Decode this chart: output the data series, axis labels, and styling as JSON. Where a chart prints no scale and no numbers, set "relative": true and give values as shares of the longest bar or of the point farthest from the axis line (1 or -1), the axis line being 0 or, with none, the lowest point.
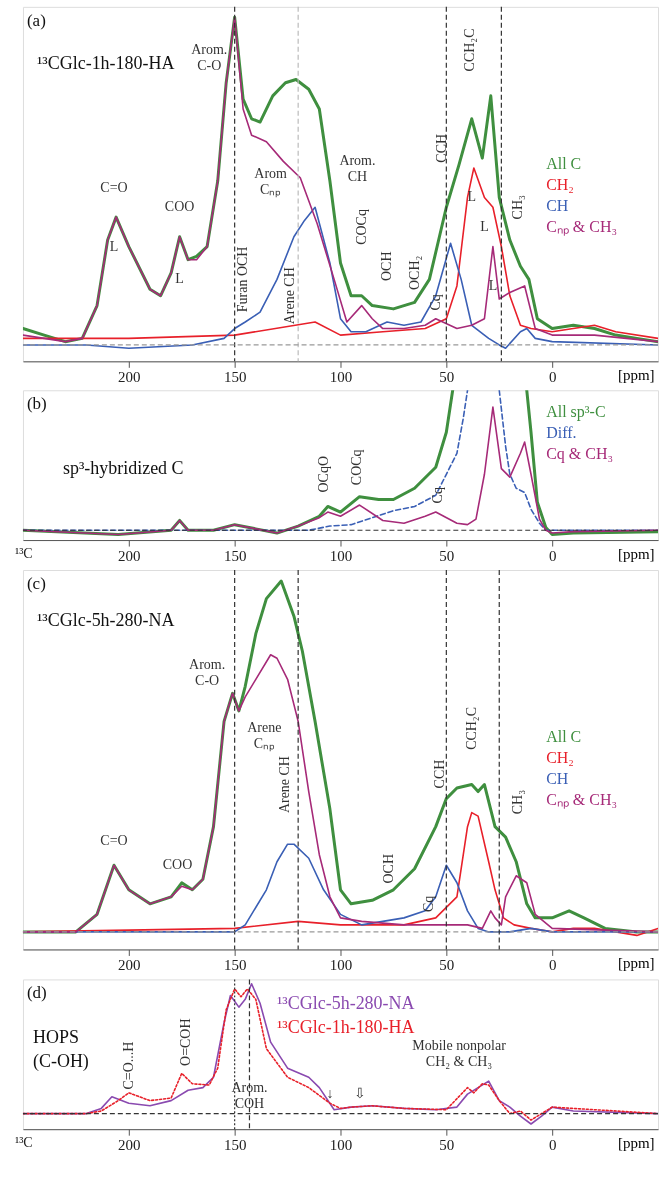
{
  "chart_data": [
    {
      "type": "line",
      "relative": true,
      "title": "(a)",
      "subtitle": "¹³CGlc-1h-180-HA",
      "xlabel": "[ppm]",
      "legend": "right",
      "grid": false,
      "xlim": [
        250,
        -50
      ],
      "xticks": [
        200,
        150,
        100,
        50,
        0
      ],
      "series": [
        {
          "name": "All C",
          "color": "#3f8f3f",
          "line_style": "solid",
          "x": [
            250,
            240,
            230,
            222,
            215,
            210,
            206,
            200,
            190,
            185,
            180,
            176,
            172,
            168,
            163,
            158,
            154,
            150,
            146,
            142,
            138,
            132,
            126,
            121,
            115,
            110,
            105,
            100,
            95,
            90,
            85,
            75,
            65,
            58,
            50,
            44,
            38,
            33,
            29,
            25,
            20,
            15,
            11,
            7,
            0,
            -10,
            -20,
            -30,
            -40,
            -50
          ],
          "values": [
            0.05,
            0.03,
            0.01,
            0.02,
            0.12,
            0.32,
            0.39,
            0.3,
            0.17,
            0.15,
            0.22,
            0.33,
            0.26,
            0.27,
            0.3,
            0.5,
            0.8,
            1.0,
            0.75,
            0.69,
            0.68,
            0.76,
            0.8,
            0.81,
            0.78,
            0.72,
            0.5,
            0.25,
            0.15,
            0.15,
            0.12,
            0.11,
            0.13,
            0.2,
            0.42,
            0.55,
            0.69,
            0.57,
            0.76,
            0.45,
            0.32,
            0.24,
            0.2,
            0.08,
            0.05,
            0.06,
            0.05,
            0.03,
            0.02,
            0.01
          ]
        },
        {
          "name": "CH₂",
          "color": "#e8202a",
          "line_style": "solid",
          "x": [
            250,
            200,
            150,
            112,
            100,
            80,
            60,
            50,
            45,
            40,
            37,
            32,
            28,
            24,
            20,
            15,
            10,
            0,
            -10,
            -20,
            -30,
            -50
          ],
          "values": [
            0.02,
            0.02,
            0.03,
            0.07,
            0.03,
            0.04,
            0.05,
            0.08,
            0.18,
            0.45,
            0.54,
            0.45,
            0.42,
            0.3,
            0.15,
            0.06,
            0.05,
            0.04,
            0.05,
            0.06,
            0.04,
            0.02
          ]
        },
        {
          "name": "CH",
          "color": "#3a5fb5",
          "line_style": "solid",
          "x": [
            250,
            220,
            200,
            170,
            155,
            150,
            145,
            138,
            130,
            122,
            117,
            112,
            105,
            100,
            95,
            88,
            78,
            70,
            62,
            55,
            48,
            43,
            38,
            30,
            25,
            22,
            15,
            12,
            8,
            0,
            -50
          ],
          "values": [
            0,
            0,
            -0.01,
            0,
            0.02,
            0.05,
            0.07,
            0.1,
            0.2,
            0.33,
            0.38,
            0.42,
            0.25,
            0.08,
            0.04,
            0.04,
            0.07,
            0.06,
            0.07,
            0.15,
            0.31,
            0.2,
            0.06,
            0.02,
            0,
            -0.01,
            0.04,
            0.05,
            0.02,
            0.01,
            0
          ]
        },
        {
          "name": "Cₙₚ & CH₃",
          "color": "#a62a78",
          "line_style": "solid",
          "x": [
            250,
            240,
            230,
            222,
            215,
            210,
            206,
            200,
            190,
            185,
            180,
            176,
            172,
            168,
            163,
            158,
            154,
            150,
            146,
            142,
            135,
            127,
            119,
            111,
            103,
            97,
            90,
            85,
            80,
            70,
            60,
            55,
            45,
            38,
            32,
            28,
            25,
            20,
            13,
            8,
            0,
            -20,
            -50
          ],
          "values": [
            0.03,
            0.02,
            0.01,
            0.02,
            0.12,
            0.32,
            0.39,
            0.3,
            0.17,
            0.15,
            0.22,
            0.33,
            0.26,
            0.26,
            0.3,
            0.5,
            0.8,
            1.0,
            0.72,
            0.64,
            0.62,
            0.56,
            0.51,
            0.37,
            0.2,
            0.07,
            0.12,
            0.08,
            0.05,
            0.05,
            0.06,
            0.08,
            0.05,
            0.06,
            0.08,
            0.3,
            0.14,
            0.16,
            0.18,
            0.05,
            0.03,
            0.03,
            0.01
          ]
        }
      ],
      "ref_lines": [
        {
          "axis": "x",
          "value": 150,
          "color": "#333333",
          "line_style": "dashed"
        },
        {
          "axis": "x",
          "value": 120,
          "color": "#bbbbbb",
          "line_style": "dashed"
        },
        {
          "axis": "x",
          "value": 50,
          "color": "#333333",
          "line_style": "dashed"
        },
        {
          "axis": "x",
          "value": 24,
          "color": "#333333",
          "line_style": "dashed"
        },
        {
          "axis": "y",
          "value": 0,
          "color": "#999999",
          "line_style": "dashed"
        }
      ],
      "annotations": [
        "Arom.\nC-O",
        "C=O",
        "L",
        "COO",
        "L",
        "Arom\nCₙₚ",
        "Arom.\nCH",
        "Furan OCH",
        "Arene CH",
        "COCq",
        "OCH",
        "OCH₂",
        "Cq",
        "CCH",
        "CCH₂C",
        "L",
        "L",
        "L",
        "CH₃"
      ]
    },
    {
      "type": "line",
      "relative": true,
      "title": "(b)",
      "subtitle": "sp³-hybridized C",
      "xlabel": "[ppm]",
      "legend": "top right",
      "grid": false,
      "xlim": [
        250,
        -50
      ],
      "xticks": [
        200,
        150,
        100,
        50,
        0
      ],
      "series": [
        {
          "name": "All sp³-C",
          "color": "#3f8f3f",
          "line_style": "solid",
          "x": [
            250,
            205,
            180,
            176,
            172,
            160,
            150,
            140,
            130,
            120,
            110,
            106,
            100,
            91,
            82,
            75,
            65,
            55,
            50,
            47,
            44,
            12,
            10,
            7,
            3,
            0,
            -10,
            -50
          ],
          "values": [
            0,
            -0.03,
            0,
            0.07,
            0,
            0,
            0.04,
            0.01,
            -0.02,
            0.03,
            0.1,
            0.17,
            0.13,
            0.24,
            0.22,
            0.22,
            0.3,
            0.45,
            0.7,
            1.0,
            null,
            1.0,
            0.7,
            0.2,
            0.02,
            -0.03,
            -0.02,
            -0.01
          ]
        },
        {
          "name": "Diff.",
          "color": "#3a5fb5",
          "line_style": "dashed",
          "x": [
            250,
            130,
            115,
            105,
            95,
            85,
            75,
            65,
            55,
            50,
            45,
            42,
            40,
            35,
            25,
            22,
            20,
            17,
            13,
            10,
            6,
            3,
            -50
          ],
          "values": [
            0,
            0,
            0,
            0.03,
            0.04,
            0.09,
            0.14,
            0.17,
            0.25,
            0.4,
            0.55,
            0.8,
            1.0,
            null,
            1.0,
            0.6,
            0.4,
            0.3,
            0.27,
            0.15,
            0.05,
            0,
            0
          ]
        },
        {
          "name": "Cq & CH₃",
          "color": "#a62a78",
          "line_style": "solid",
          "x": [
            250,
            205,
            180,
            176,
            172,
            160,
            150,
            140,
            130,
            120,
            110,
            106,
            100,
            91,
            80,
            70,
            60,
            55,
            45,
            40,
            36,
            32,
            28,
            24,
            20,
            15,
            13,
            10,
            6,
            3,
            0,
            -10,
            -50
          ],
          "values": [
            0,
            -0.03,
            0,
            0.07,
            0,
            0,
            0.04,
            0.01,
            -0.02,
            0.03,
            0.09,
            0.13,
            0.1,
            0.18,
            0.07,
            0.05,
            0.1,
            0.13,
            0.05,
            0.04,
            0.08,
            0.4,
            0.88,
            0.44,
            0.38,
            0.55,
            0.63,
            0.4,
            0.08,
            0,
            -0.02,
            -0.01,
            0
          ]
        }
      ],
      "ref_lines": [
        {
          "axis": "y",
          "value": 0,
          "color": "#333333",
          "line_style": "dashed"
        }
      ],
      "annotations": [
        "OCqO",
        "COCq",
        "Cq",
        "¹³C"
      ]
    },
    {
      "type": "line",
      "relative": true,
      "title": "(c)",
      "subtitle": "¹³CGlc-5h-280-NA",
      "xlabel": "[ppm]",
      "legend": "right",
      "grid": false,
      "xlim": [
        250,
        -50
      ],
      "xticks": [
        200,
        150,
        100,
        50,
        0
      ],
      "series": [
        {
          "name": "All C",
          "color": "#3f8f3f",
          "line_style": "solid",
          "x": [
            250,
            225,
            215,
            207,
            200,
            190,
            180,
            175,
            170,
            165,
            160,
            155,
            151,
            148,
            145,
            140,
            135,
            128,
            122,
            118,
            112,
            105,
            100,
            95,
            85,
            75,
            65,
            55,
            50,
            45,
            38,
            35,
            32,
            27,
            22,
            17,
            12,
            8,
            0,
            -8,
            -15,
            -25,
            -40,
            -50
          ],
          "values": [
            0,
            0,
            0.05,
            0.19,
            0.12,
            0.08,
            0.1,
            0.14,
            0.12,
            0.15,
            0.3,
            0.6,
            0.68,
            0.63,
            0.7,
            0.85,
            0.95,
            1.0,
            0.9,
            0.8,
            0.6,
            0.35,
            0.12,
            0.08,
            0.09,
            0.12,
            0.18,
            0.3,
            0.38,
            0.41,
            0.42,
            0.4,
            0.42,
            0.3,
            0.27,
            0.2,
            0.08,
            0.04,
            0.04,
            0.06,
            0.04,
            0.01,
            0,
            0
          ]
        },
        {
          "name": "CH₂",
          "color": "#e8202a",
          "line_style": "solid",
          "x": [
            250,
            150,
            120,
            100,
            70,
            55,
            45,
            40,
            38,
            35,
            30,
            27,
            23,
            18,
            10,
            0,
            -10,
            -20,
            -40,
            -50
          ],
          "values": [
            0,
            0.01,
            0.03,
            0.02,
            0.02,
            0.04,
            0.1,
            0.3,
            0.34,
            0.33,
            0.2,
            0.12,
            0.04,
            0.02,
            0.01,
            0,
            0.01,
            0.01,
            -0.01,
            0.01
          ]
        },
        {
          "name": "CH",
          "color": "#3a5fb5",
          "line_style": "solid",
          "x": [
            250,
            160,
            150,
            145,
            135,
            130,
            125,
            122,
            115,
            108,
            100,
            90,
            80,
            70,
            60,
            55,
            50,
            45,
            40,
            35,
            30,
            20,
            10,
            0,
            -50
          ],
          "values": [
            0,
            0,
            0,
            0.02,
            0.12,
            0.2,
            0.25,
            0.25,
            0.21,
            0.12,
            0.05,
            0.02,
            0.03,
            0.04,
            0.06,
            0.1,
            0.19,
            0.14,
            0.06,
            0.01,
            0,
            0,
            0.01,
            0,
            0
          ]
        },
        {
          "name": "Cₙₚ & CH₃",
          "color": "#a62a78",
          "line_style": "solid",
          "x": [
            250,
            225,
            215,
            207,
            200,
            190,
            180,
            175,
            170,
            165,
            160,
            155,
            151,
            148,
            145,
            140,
            133,
            130,
            125,
            120,
            115,
            110,
            105,
            100,
            90,
            70,
            50,
            40,
            33,
            29,
            27,
            24,
            22,
            17,
            12,
            8,
            0,
            -50
          ],
          "values": [
            0,
            0,
            0.05,
            0.19,
            0.12,
            0.08,
            0.1,
            0.13,
            0.12,
            0.15,
            0.3,
            0.6,
            0.68,
            0.63,
            0.67,
            0.72,
            0.79,
            0.78,
            0.72,
            0.6,
            0.4,
            0.22,
            0.1,
            0.04,
            0.03,
            0.02,
            0.02,
            0.02,
            0.01,
            0.06,
            0.04,
            0.02,
            0.1,
            0.16,
            0.14,
            0.05,
            0.01,
            0
          ]
        }
      ],
      "ref_lines": [
        {
          "axis": "x",
          "value": 150,
          "color": "#333333",
          "line_style": "dashed"
        },
        {
          "axis": "x",
          "value": 120,
          "color": "#333333",
          "line_style": "dashed"
        },
        {
          "axis": "x",
          "value": 50,
          "color": "#333333",
          "line_style": "dashed"
        },
        {
          "axis": "x",
          "value": 25,
          "color": "#333333",
          "line_style": "dashed"
        },
        {
          "axis": "y",
          "value": 0,
          "color": "#999999",
          "line_style": "dashed"
        }
      ],
      "annotations": [
        "Arom.\nC-O",
        "Arene\nCₙₚ",
        "Arene CH",
        "C=O",
        "COO",
        "OCH",
        "Cq",
        "CCH",
        "CCH₂C",
        "CH₃"
      ]
    },
    {
      "type": "line",
      "relative": true,
      "title": "(d)",
      "subtitle": "HOPS\n(C-OH)",
      "xlabel": "[ppm]",
      "legend": "top",
      "grid": false,
      "xlim": [
        250,
        -50
      ],
      "xticks": [
        200,
        150,
        100,
        50,
        0
      ],
      "series": [
        {
          "name": "¹³CGlc-5h-280-NA",
          "color": "#8a4ab0",
          "line_style": "solid",
          "x": [
            250,
            220,
            213,
            208,
            200,
            190,
            180,
            172,
            165,
            160,
            155,
            152,
            148,
            145,
            142,
            138,
            133,
            125,
            115,
            110,
            103,
            95,
            85,
            70,
            55,
            45,
            40,
            35,
            30,
            25,
            20,
            15,
            10,
            5,
            0,
            -10,
            -50
          ],
          "values": [
            0,
            0,
            0.04,
            0.13,
            0.08,
            0.06,
            0.1,
            0.18,
            0.2,
            0.28,
            0.7,
            0.91,
            0.82,
            0.88,
            1.0,
            0.85,
            0.55,
            0.35,
            0.28,
            0.2,
            0.03,
            0.05,
            0.06,
            0.04,
            0.03,
            0.05,
            0.15,
            0.2,
            0.25,
            0.1,
            0.05,
            -0.02,
            -0.08,
            -0.02,
            0.05,
            0.02,
            0
          ]
        },
        {
          "name": "¹³CGlc-1h-180-HA",
          "color": "#e8202a",
          "line_style": "dotted",
          "x": [
            250,
            220,
            213,
            205,
            200,
            190,
            180,
            175,
            170,
            162,
            158,
            154,
            150,
            147,
            144,
            140,
            135,
            125,
            115,
            105,
            100,
            95,
            85,
            70,
            50,
            40,
            37,
            33,
            30,
            25,
            20,
            15,
            10,
            5,
            0,
            -50
          ],
          "values": [
            0,
            0,
            0.02,
            0.1,
            0.16,
            0.1,
            0.12,
            0.31,
            0.23,
            0.22,
            0.35,
            0.8,
            0.96,
            0.9,
            0.96,
            0.88,
            0.5,
            0.28,
            0.2,
            0.08,
            0.04,
            0.05,
            0.06,
            0.04,
            0.03,
            0.2,
            0.16,
            0.23,
            0.22,
            0.1,
            0,
            0.02,
            -0.05,
            0,
            0.05,
            0
          ]
        }
      ],
      "ref_lines": [
        {
          "axis": "x",
          "value": 150,
          "color": "#333333",
          "line_style": "dotted"
        },
        {
          "axis": "x",
          "value": 143,
          "color": "#333333",
          "line_style": "dashed"
        },
        {
          "axis": "y",
          "value": 0,
          "color": "#333333",
          "line_style": "dashed"
        }
      ],
      "annotations": [
        "C=O...H",
        "O=COH",
        "Arom.\nCOH",
        "↓",
        "⇩",
        "Mobile nonpolar\nCH₂ & CH₃",
        "¹³C"
      ]
    }
  ]
}
